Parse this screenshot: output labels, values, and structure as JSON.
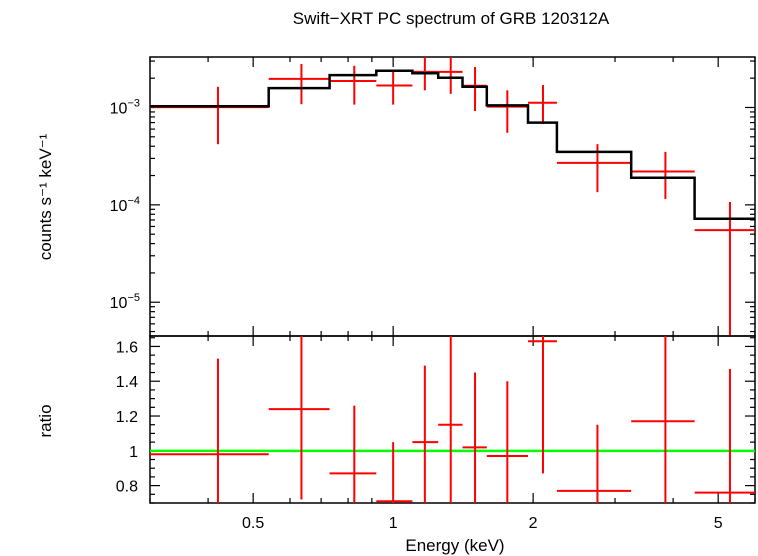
{
  "chart_data": {
    "type": "scatter",
    "title": "Swift−XRT PC spectrum of GRB 120312A",
    "xlabel": "Energy (keV)",
    "xscale": "log",
    "xlim": [
      0.3,
      6.0
    ],
    "x_ticks": [
      0.5,
      1,
      2,
      5
    ],
    "x_tick_labels": [
      "0.5",
      "1",
      "2",
      "5"
    ],
    "panels": [
      {
        "name": "spectrum",
        "ylabel": "counts s⁻¹ keV⁻¹",
        "yscale": "log",
        "ylim": [
          4.5e-06,
          0.0033
        ],
        "y_ticks": [
          1e-05,
          0.0001,
          0.001
        ],
        "y_tick_labels": [
          {
            "base": "10",
            "exp": "−5"
          },
          {
            "base": "10",
            "exp": "−4"
          },
          {
            "base": "10",
            "exp": "−3"
          }
        ],
        "series": [
          {
            "name": "data",
            "color": "#ff0000",
            "style": "errorbar",
            "points": [
              {
                "x": 0.42,
                "xlo": 0.3,
                "xhi": 0.54,
                "y": 0.00101,
                "ylo": 0.00042,
                "yhi": 0.00163
              },
              {
                "x": 0.635,
                "xlo": 0.54,
                "xhi": 0.73,
                "y": 0.00197,
                "ylo": 0.00108,
                "yhi": 0.0028
              },
              {
                "x": 0.825,
                "xlo": 0.73,
                "xhi": 0.92,
                "y": 0.00187,
                "ylo": 0.00107,
                "yhi": 0.00268
              },
              {
                "x": 1.0,
                "xlo": 0.92,
                "xhi": 1.1,
                "y": 0.00168,
                "ylo": 0.00107,
                "yhi": 0.00232
              },
              {
                "x": 1.17,
                "xlo": 1.1,
                "xhi": 1.25,
                "y": 0.00232,
                "ylo": 0.0015,
                "yhi": 0.0033
              },
              {
                "x": 1.33,
                "xlo": 1.25,
                "xhi": 1.41,
                "y": 0.00232,
                "ylo": 0.00138,
                "yhi": 0.0033
              },
              {
                "x": 1.5,
                "xlo": 1.41,
                "xhi": 1.59,
                "y": 0.00167,
                "ylo": 0.00092,
                "yhi": 0.0026
              },
              {
                "x": 1.76,
                "xlo": 1.59,
                "xhi": 1.95,
                "y": 0.00102,
                "ylo": 0.00055,
                "yhi": 0.0015
              },
              {
                "x": 2.1,
                "xlo": 1.95,
                "xhi": 2.25,
                "y": 0.00112,
                "ylo": 0.00068,
                "yhi": 0.0017
              },
              {
                "x": 2.75,
                "xlo": 2.25,
                "xhi": 3.25,
                "y": 0.00027,
                "ylo": 0.000135,
                "yhi": 0.00042
              },
              {
                "x": 3.85,
                "xlo": 3.25,
                "xhi": 4.45,
                "y": 0.00022,
                "ylo": 0.000115,
                "yhi": 0.00035
              },
              {
                "x": 5.3,
                "xlo": 4.45,
                "xhi": 6.0,
                "y": 5.5e-05,
                "ylo": 4.5e-06,
                "yhi": 0.000107
              }
            ]
          },
          {
            "name": "model",
            "color": "#000000",
            "style": "step",
            "edges": [
              0.3,
              0.54,
              0.73,
              0.92,
              1.1,
              1.25,
              1.41,
              1.59,
              1.95,
              2.25,
              3.25,
              4.45,
              6.0
            ],
            "values": [
              0.00103,
              0.00158,
              0.00215,
              0.00238,
              0.00225,
              0.00202,
              0.00163,
              0.00105,
              0.0007,
              0.00035,
              0.00019,
              7.2e-05
            ]
          }
        ]
      },
      {
        "name": "ratio",
        "ylabel": "ratio",
        "yscale": "linear",
        "ylim": [
          0.7,
          1.66
        ],
        "y_ticks": [
          0.8,
          1,
          1.2,
          1.4,
          1.6
        ],
        "y_tick_labels": [
          "0.8",
          "1",
          "1.2",
          "1.4",
          "1.6"
        ],
        "series": [
          {
            "name": "unity",
            "color": "#00ff00",
            "style": "hline",
            "y": 1.0
          },
          {
            "name": "ratio",
            "color": "#ff0000",
            "style": "errorbar",
            "points": [
              {
                "x": 0.42,
                "xlo": 0.3,
                "xhi": 0.54,
                "y": 0.98,
                "ylo": 0.7,
                "yhi": 1.53
              },
              {
                "x": 0.635,
                "xlo": 0.54,
                "xhi": 0.73,
                "y": 1.24,
                "ylo": 0.72,
                "yhi": 1.66
              },
              {
                "x": 0.825,
                "xlo": 0.73,
                "xhi": 0.92,
                "y": 0.87,
                "ylo": 0.7,
                "yhi": 1.26
              },
              {
                "x": 1.0,
                "xlo": 0.92,
                "xhi": 1.1,
                "y": 0.71,
                "ylo": 0.7,
                "yhi": 1.05
              },
              {
                "x": 1.17,
                "xlo": 1.1,
                "xhi": 1.25,
                "y": 1.05,
                "ylo": 0.7,
                "yhi": 1.49
              },
              {
                "x": 1.33,
                "xlo": 1.25,
                "xhi": 1.41,
                "y": 1.15,
                "ylo": 0.7,
                "yhi": 1.66
              },
              {
                "x": 1.5,
                "xlo": 1.41,
                "xhi": 1.59,
                "y": 1.02,
                "ylo": 0.7,
                "yhi": 1.45
              },
              {
                "x": 1.76,
                "xlo": 1.59,
                "xhi": 1.95,
                "y": 0.97,
                "ylo": 0.7,
                "yhi": 1.4
              },
              {
                "x": 2.1,
                "xlo": 1.95,
                "xhi": 2.25,
                "y": 1.63,
                "ylo": 0.87,
                "yhi": 1.66
              },
              {
                "x": 2.75,
                "xlo": 2.25,
                "xhi": 3.25,
                "y": 0.77,
                "ylo": 0.7,
                "yhi": 1.15
              },
              {
                "x": 3.85,
                "xlo": 3.25,
                "xhi": 4.45,
                "y": 1.17,
                "ylo": 0.7,
                "yhi": 1.66
              },
              {
                "x": 5.3,
                "xlo": 4.45,
                "xhi": 6.0,
                "y": 0.76,
                "ylo": 0.7,
                "yhi": 1.47
              }
            ]
          }
        ]
      }
    ]
  }
}
